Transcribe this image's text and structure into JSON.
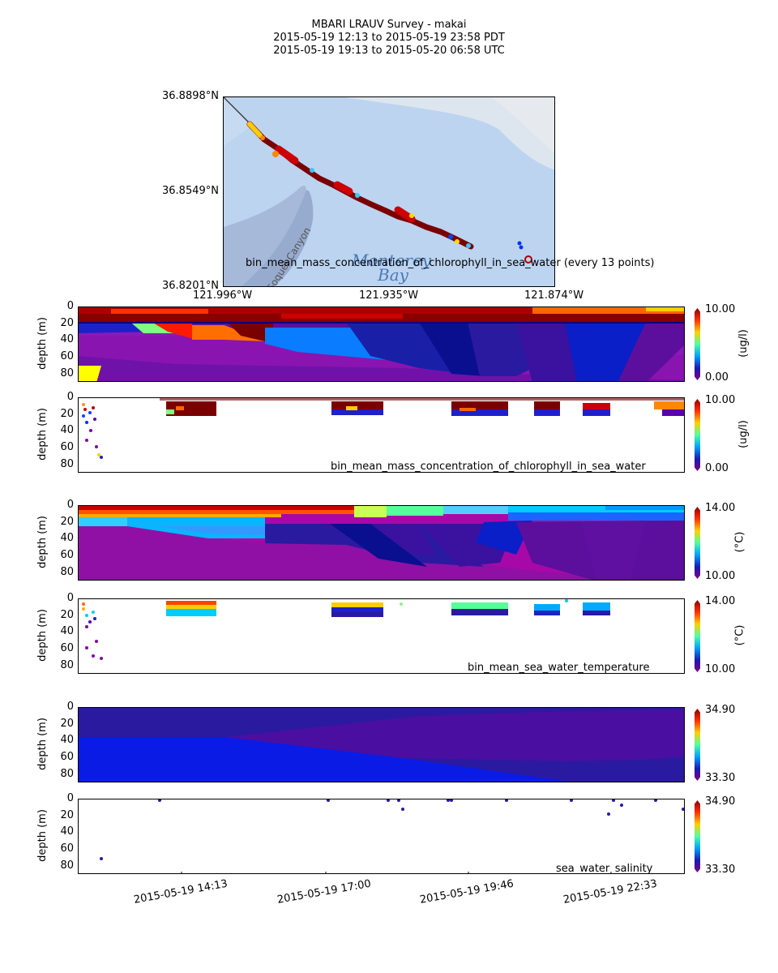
{
  "title": {
    "line1": "MBARI LRAUV Survey - makai",
    "line2": "2015-05-19 12:13  to  2015-05-19 23:58 PDT",
    "line3": "2015-05-19 19:13  to  2015-05-20 06:58 UTC"
  },
  "map": {
    "lat_labels": [
      "36.8898°N",
      "36.8549°N",
      "36.8201°N"
    ],
    "lon_labels": [
      "121.996°W",
      "121.935°W",
      "121.874°W"
    ],
    "place_label_1": "Monterey",
    "place_label_2": "Bay",
    "canyon_label": "Soquel Canyon",
    "caption": "bin_mean_mass_concentration_of_chlorophyll_in_sea_water (every 13 points)",
    "colors": {
      "water": "#bcd4ef",
      "land": "#e4e4e4",
      "canyon": "#9aaed0"
    }
  },
  "chart_data": [
    {
      "type": "heatmap",
      "variable": "mass_concentration_of_chlorophyll_in_sea_water",
      "ylabel": "depth (m)",
      "yticks": [
        0,
        20,
        40,
        60,
        80
      ],
      "ylim": [
        90,
        0
      ],
      "colorbar": {
        "min": "0.00",
        "max": "10.00",
        "unit": "(ug/l)"
      }
    },
    {
      "type": "scatter",
      "label": "bin_mean_mass_concentration_of_chlorophyll_in_sea_water",
      "ylabel": "depth (m)",
      "yticks": [
        0,
        20,
        40,
        60,
        80
      ],
      "ylim": [
        90,
        0
      ],
      "colorbar": {
        "min": "0.00",
        "max": "10.00",
        "unit": "(ug/l)"
      }
    },
    {
      "type": "heatmap",
      "variable": "sea_water_temperature",
      "ylabel": "depth (m)",
      "yticks": [
        0,
        20,
        40,
        60,
        80
      ],
      "ylim": [
        90,
        0
      ],
      "colorbar": {
        "min": "10.00",
        "max": "14.00",
        "unit": "(°C)"
      }
    },
    {
      "type": "scatter",
      "label": "bin_mean_sea_water_temperature",
      "ylabel": "depth (m)",
      "yticks": [
        0,
        20,
        40,
        60,
        80
      ],
      "ylim": [
        90,
        0
      ],
      "colorbar": {
        "min": "10.00",
        "max": "14.00",
        "unit": "(°C)"
      }
    },
    {
      "type": "heatmap",
      "variable": "sea_water_salinity",
      "ylabel": "depth (m)",
      "yticks": [
        0,
        20,
        40,
        60,
        80
      ],
      "ylim": [
        90,
        0
      ],
      "colorbar": {
        "min": "33.30",
        "max": "34.90",
        "unit": ""
      }
    },
    {
      "type": "scatter",
      "label": "sea_water_salinity",
      "ylabel": "depth (m)",
      "yticks": [
        0,
        20,
        40,
        60,
        80
      ],
      "ylim": [
        90,
        0
      ],
      "colorbar": {
        "min": "33.30",
        "max": "34.90",
        "unit": ""
      },
      "x_ticks": [
        "2015-05-19 14:13",
        "2015-05-19 17:00",
        "2015-05-19 19:46",
        "2015-05-19 22:33"
      ]
    }
  ]
}
